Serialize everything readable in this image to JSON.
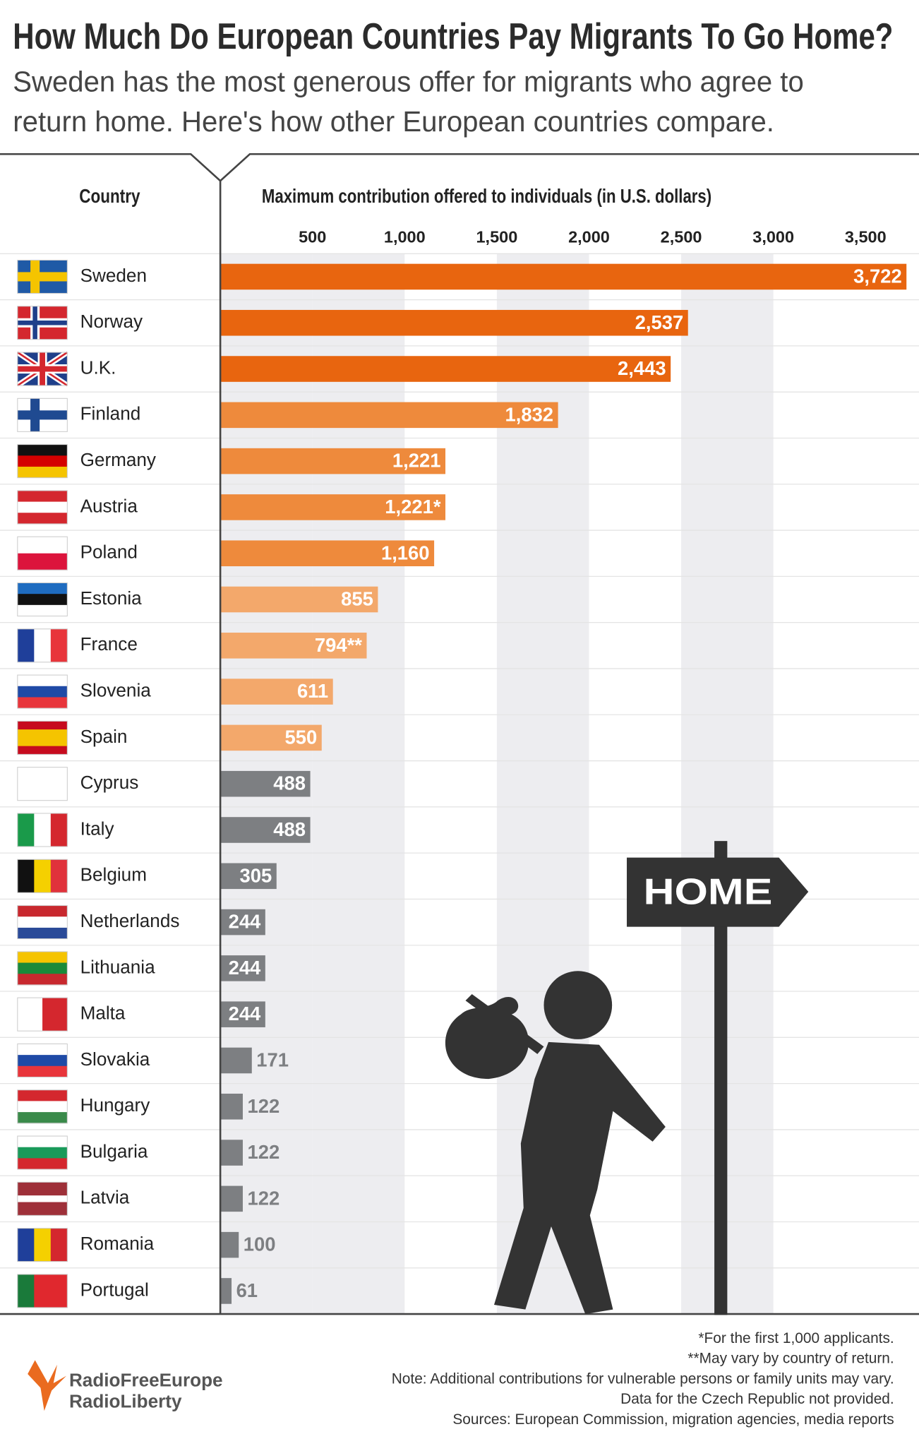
{
  "chart_data": {
    "type": "bar",
    "orientation": "horizontal",
    "title": "How Much Do European Countries Pay Migrants To Go Home?",
    "subtitle": [
      "Sweden has the most generous offer for migrants who agree to",
      "return home. Here's how other European countries compare."
    ],
    "category_header": "Country",
    "x_label": "Maximum contribution offered to individuals (in U.S. dollars)",
    "categories": [
      "Sweden",
      "Norway",
      "U.K.",
      "Finland",
      "Germany",
      "Austria",
      "Poland",
      "Estonia",
      "France",
      "Slovenia",
      "Spain",
      "Cyprus",
      "Italy",
      "Belgium",
      "Netherlands",
      "Lithuania",
      "Malta",
      "Slovakia",
      "Hungary",
      "Bulgaria",
      "Latvia",
      "Romania",
      "Portugal"
    ],
    "values": [
      3722,
      2537,
      2443,
      1832,
      1221,
      1221,
      1160,
      855,
      794,
      611,
      550,
      488,
      488,
      305,
      244,
      244,
      244,
      171,
      122,
      122,
      122,
      100,
      61
    ],
    "value_labels": [
      "3,722",
      "2,537",
      "2,443",
      "1,832",
      "1,221",
      "1,221*",
      "1,160",
      "855",
      "794**",
      "611",
      "550",
      "488",
      "488",
      "305",
      "244",
      "244",
      "244",
      "171",
      "122",
      "122",
      "122",
      "100",
      "61"
    ],
    "colors": [
      "#e8650f",
      "#e8650f",
      "#e8650f",
      "#ee8a3c",
      "#ee8a3c",
      "#ee8a3c",
      "#ee8a3c",
      "#f3a86b",
      "#f3a86b",
      "#f3a86b",
      "#f3a86b",
      "#7d7f82",
      "#7d7f82",
      "#7d7f82",
      "#7d7f82",
      "#7d7f82",
      "#7d7f82",
      "#7d7f82",
      "#7d7f82",
      "#7d7f82",
      "#7d7f82",
      "#7d7f82",
      "#7d7f82"
    ],
    "xlim": [
      0,
      3790
    ],
    "xticks": [
      500,
      {
        "value": 1000,
        "label": "1,000"
      },
      {
        "value": 1500,
        "label": "1,500"
      },
      {
        "value": 2000,
        "label": "2,000"
      },
      {
        "value": 2500,
        "label": "2,500"
      },
      {
        "value": 3000,
        "label": "3,000"
      },
      {
        "value": 3500,
        "label": "3,500"
      }
    ],
    "grid": "bands",
    "sign": "HOME",
    "notes": [
      "*For the first 1,000 applicants.",
      "**May vary by country of return.",
      "Note: Additional contributions for vulnerable persons or family units may vary.",
      "Data for the Czech Republic not provided.",
      "Sources: European Commission, migration agencies, media reports"
    ],
    "logo": [
      "RadioFreeEurope",
      "RadioLiberty"
    ]
  }
}
